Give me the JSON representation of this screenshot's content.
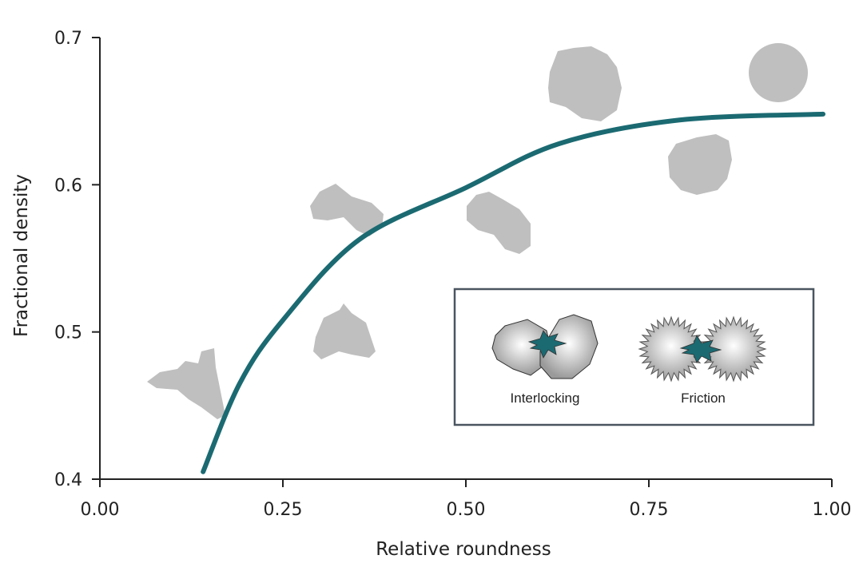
{
  "chart_data": {
    "type": "line",
    "title": "",
    "xlabel": "Relative roundness",
    "ylabel": "Fractional density",
    "xlim": [
      0,
      1
    ],
    "ylim": [
      0.4,
      0.7
    ],
    "x_ticks": [
      "0.00",
      "0.25",
      "0.50",
      "0.75",
      "1.00"
    ],
    "y_ticks": [
      "0.4",
      "0.5",
      "0.6",
      "0.7"
    ],
    "grid": false,
    "series": [
      {
        "color": "#1b6a72",
        "x": [
          0.141,
          0.191,
          0.25,
          0.355,
          0.5,
          0.628,
          0.792,
          0.988
        ],
        "y": [
          0.405,
          0.465,
          0.508,
          0.563,
          0.598,
          0.628,
          0.644,
          0.648
        ]
      }
    ],
    "inset": {
      "labels": [
        "Interlocking",
        "Friction"
      ]
    },
    "colors": {
      "curve": "#1b6a72",
      "particles": "#bfbfbf",
      "axis": "#222222",
      "inset_border": "#4a5560"
    }
  }
}
